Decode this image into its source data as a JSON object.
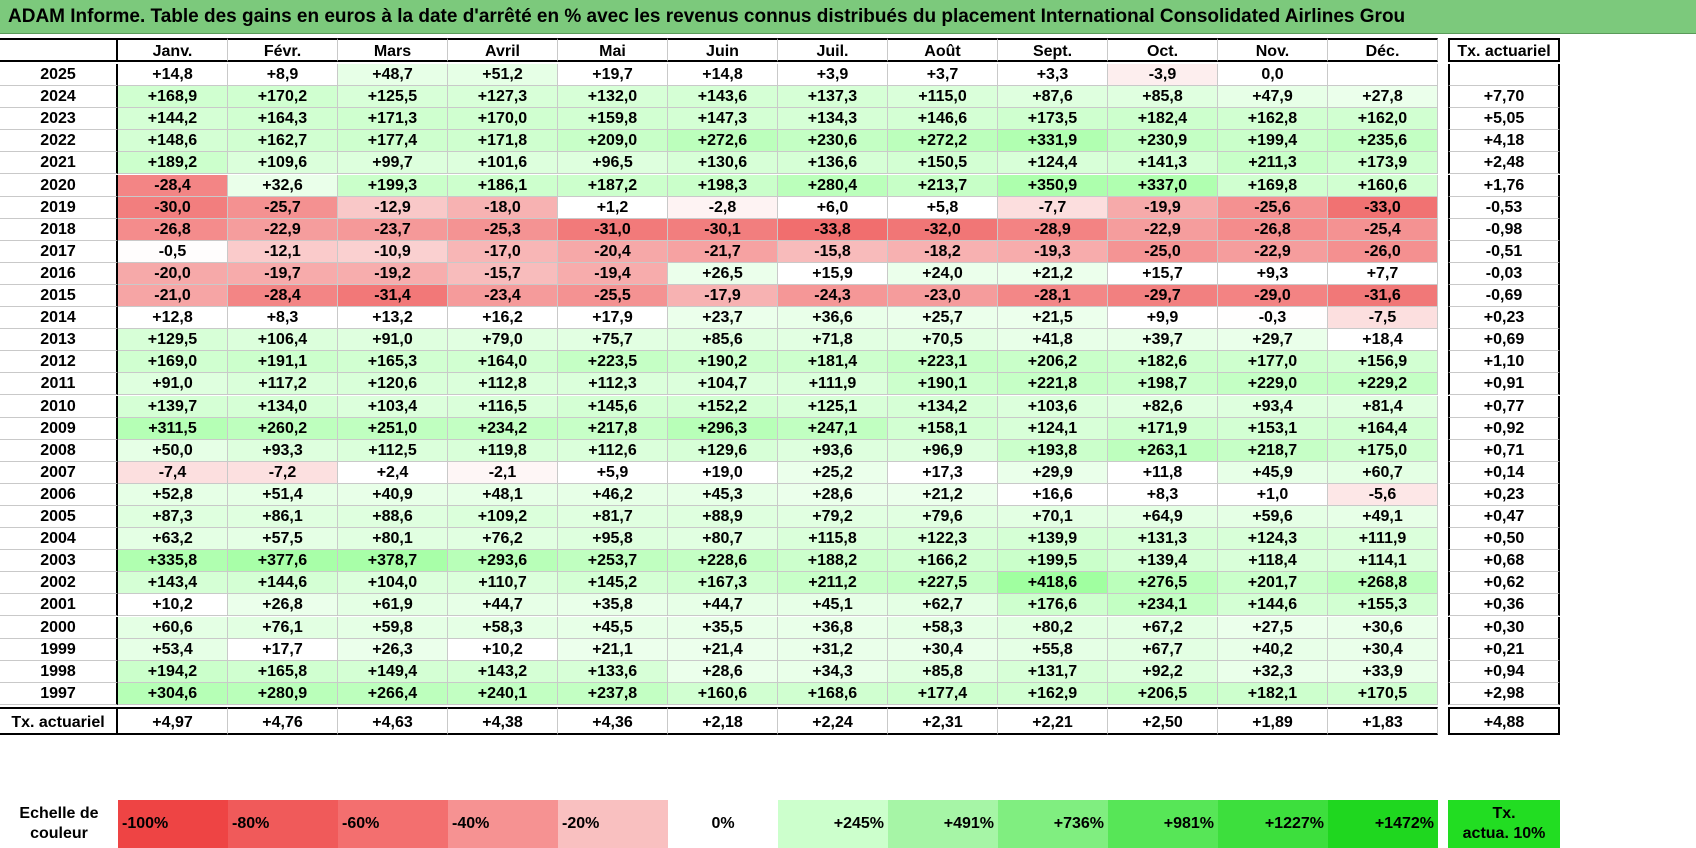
{
  "title": "ADAM Informe. Table des gains en euros à la date d'arrêté en % avec les revenus connus distribués du placement International Consolidated Airlines Grou",
  "months": [
    "Janv.",
    "Févr.",
    "Mars",
    "Avril",
    "Mai",
    "Juin",
    "Juil.",
    "Août",
    "Sept.",
    "Oct.",
    "Nov.",
    "Déc."
  ],
  "tx_header": "Tx. actuariel",
  "rows": [
    {
      "year": "2025",
      "values": [
        "+14,8",
        "+8,9",
        "+48,7",
        "+51,2",
        "+19,7",
        "+14,8",
        "+3,9",
        "+3,7",
        "+3,3",
        "-3,9",
        "0,0",
        ""
      ],
      "tx": ""
    },
    {
      "year": "2024",
      "values": [
        "+168,9",
        "+170,2",
        "+125,5",
        "+127,3",
        "+132,0",
        "+143,6",
        "+137,3",
        "+115,0",
        "+87,6",
        "+85,8",
        "+47,9",
        "+27,8"
      ],
      "tx": "+7,70"
    },
    {
      "year": "2023",
      "values": [
        "+144,2",
        "+164,3",
        "+171,3",
        "+170,0",
        "+159,8",
        "+147,3",
        "+134,3",
        "+146,6",
        "+173,5",
        "+182,4",
        "+162,8",
        "+162,0"
      ],
      "tx": "+5,05"
    },
    {
      "year": "2022",
      "values": [
        "+148,6",
        "+162,7",
        "+177,4",
        "+171,8",
        "+209,0",
        "+272,6",
        "+230,6",
        "+272,2",
        "+331,9",
        "+230,9",
        "+199,4",
        "+235,6"
      ],
      "tx": "+4,18"
    },
    {
      "year": "2021",
      "values": [
        "+189,2",
        "+109,6",
        "+99,7",
        "+101,6",
        "+96,5",
        "+130,6",
        "+136,6",
        "+150,5",
        "+124,4",
        "+141,3",
        "+211,3",
        "+173,9"
      ],
      "tx": "+2,48"
    },
    {
      "year": "2020",
      "values": [
        "-28,4",
        "+32,6",
        "+199,3",
        "+186,1",
        "+187,2",
        "+198,3",
        "+280,4",
        "+213,7",
        "+350,9",
        "+337,0",
        "+169,8",
        "+160,6"
      ],
      "tx": "+1,76"
    },
    {
      "year": "2019",
      "values": [
        "-30,0",
        "-25,7",
        "-12,9",
        "-18,0",
        "+1,2",
        "-2,8",
        "+6,0",
        "+5,8",
        "-7,7",
        "-19,9",
        "-25,6",
        "-33,0"
      ],
      "tx": "-0,53"
    },
    {
      "year": "2018",
      "values": [
        "-26,8",
        "-22,9",
        "-23,7",
        "-25,3",
        "-31,0",
        "-30,1",
        "-33,8",
        "-32,0",
        "-28,9",
        "-22,9",
        "-26,8",
        "-25,4"
      ],
      "tx": "-0,98"
    },
    {
      "year": "2017",
      "values": [
        "-0,5",
        "-12,1",
        "-10,9",
        "-17,0",
        "-20,4",
        "-21,7",
        "-15,8",
        "-18,2",
        "-19,3",
        "-25,0",
        "-22,9",
        "-26,0"
      ],
      "tx": "-0,51"
    },
    {
      "year": "2016",
      "values": [
        "-20,0",
        "-19,7",
        "-19,2",
        "-15,7",
        "-19,4",
        "+26,5",
        "+15,9",
        "+24,0",
        "+21,2",
        "+15,7",
        "+9,3",
        "+7,7"
      ],
      "tx": "-0,03"
    },
    {
      "year": "2015",
      "values": [
        "-21,0",
        "-28,4",
        "-31,4",
        "-23,4",
        "-25,5",
        "-17,9",
        "-24,3",
        "-23,0",
        "-28,1",
        "-29,7",
        "-29,0",
        "-31,6"
      ],
      "tx": "-0,69"
    },
    {
      "year": "2014",
      "values": [
        "+12,8",
        "+8,3",
        "+13,2",
        "+16,2",
        "+17,9",
        "+23,7",
        "+36,6",
        "+25,7",
        "+21,5",
        "+9,9",
        "-0,3",
        "-7,5"
      ],
      "tx": "+0,23"
    },
    {
      "year": "2013",
      "values": [
        "+129,5",
        "+106,4",
        "+91,0",
        "+79,0",
        "+75,7",
        "+85,6",
        "+71,8",
        "+70,5",
        "+41,8",
        "+39,7",
        "+29,7",
        "+18,4"
      ],
      "tx": "+0,69"
    },
    {
      "year": "2012",
      "values": [
        "+169,0",
        "+191,1",
        "+165,3",
        "+164,0",
        "+223,5",
        "+190,2",
        "+181,4",
        "+223,1",
        "+206,2",
        "+182,6",
        "+177,0",
        "+156,9"
      ],
      "tx": "+1,10"
    },
    {
      "year": "2011",
      "values": [
        "+91,0",
        "+117,2",
        "+120,6",
        "+112,8",
        "+112,3",
        "+104,7",
        "+111,9",
        "+190,1",
        "+221,8",
        "+198,7",
        "+229,0",
        "+229,2"
      ],
      "tx": "+0,91"
    },
    {
      "year": "2010",
      "values": [
        "+139,7",
        "+134,0",
        "+103,4",
        "+116,5",
        "+145,6",
        "+152,2",
        "+125,1",
        "+134,2",
        "+103,6",
        "+82,6",
        "+93,4",
        "+81,4"
      ],
      "tx": "+0,77"
    },
    {
      "year": "2009",
      "values": [
        "+311,5",
        "+260,2",
        "+251,0",
        "+234,2",
        "+217,8",
        "+296,3",
        "+247,1",
        "+158,1",
        "+124,1",
        "+171,9",
        "+153,1",
        "+164,4"
      ],
      "tx": "+0,92"
    },
    {
      "year": "2008",
      "values": [
        "+50,0",
        "+93,3",
        "+112,5",
        "+119,8",
        "+112,6",
        "+129,6",
        "+93,6",
        "+96,9",
        "+193,8",
        "+263,1",
        "+218,7",
        "+175,0"
      ],
      "tx": "+0,71"
    },
    {
      "year": "2007",
      "values": [
        "-7,4",
        "-7,2",
        "+2,4",
        "-2,1",
        "+5,9",
        "+19,0",
        "+25,2",
        "+17,3",
        "+29,9",
        "+11,8",
        "+45,9",
        "+60,7"
      ],
      "tx": "+0,14"
    },
    {
      "year": "2006",
      "values": [
        "+52,8",
        "+51,4",
        "+40,9",
        "+48,1",
        "+46,2",
        "+45,3",
        "+28,6",
        "+21,2",
        "+16,6",
        "+8,3",
        "+1,0",
        "-5,6"
      ],
      "tx": "+0,23"
    },
    {
      "year": "2005",
      "values": [
        "+87,3",
        "+86,1",
        "+88,6",
        "+109,2",
        "+81,7",
        "+88,9",
        "+79,2",
        "+79,6",
        "+70,1",
        "+64,9",
        "+59,6",
        "+49,1"
      ],
      "tx": "+0,47"
    },
    {
      "year": "2004",
      "values": [
        "+63,2",
        "+57,5",
        "+80,1",
        "+76,2",
        "+95,8",
        "+80,7",
        "+115,8",
        "+122,3",
        "+139,9",
        "+131,3",
        "+124,3",
        "+111,9"
      ],
      "tx": "+0,50"
    },
    {
      "year": "2003",
      "values": [
        "+335,8",
        "+377,6",
        "+378,7",
        "+293,6",
        "+253,7",
        "+228,6",
        "+188,2",
        "+166,2",
        "+199,5",
        "+139,4",
        "+118,4",
        "+114,1"
      ],
      "tx": "+0,68"
    },
    {
      "year": "2002",
      "values": [
        "+143,4",
        "+144,6",
        "+104,0",
        "+110,7",
        "+145,2",
        "+167,3",
        "+211,2",
        "+227,5",
        "+418,6",
        "+276,5",
        "+201,7",
        "+268,8"
      ],
      "tx": "+0,62"
    },
    {
      "year": "2001",
      "values": [
        "+10,2",
        "+26,8",
        "+61,9",
        "+44,7",
        "+35,8",
        "+44,7",
        "+45,1",
        "+62,7",
        "+176,6",
        "+234,1",
        "+144,6",
        "+155,3"
      ],
      "tx": "+0,36"
    },
    {
      "year": "2000",
      "values": [
        "+60,6",
        "+76,1",
        "+59,8",
        "+58,3",
        "+45,5",
        "+35,5",
        "+36,8",
        "+58,3",
        "+80,2",
        "+67,2",
        "+27,5",
        "+30,6"
      ],
      "tx": "+0,30"
    },
    {
      "year": "1999",
      "values": [
        "+53,4",
        "+17,7",
        "+26,3",
        "+10,2",
        "+21,1",
        "+21,4",
        "+31,2",
        "+30,4",
        "+55,8",
        "+67,7",
        "+40,2",
        "+30,4"
      ],
      "tx": "+0,21"
    },
    {
      "year": "1998",
      "values": [
        "+194,2",
        "+165,8",
        "+149,4",
        "+143,2",
        "+133,6",
        "+28,6",
        "+34,3",
        "+85,8",
        "+131,7",
        "+92,2",
        "+32,3",
        "+33,9"
      ],
      "tx": "+0,94"
    },
    {
      "year": "1997",
      "values": [
        "+304,6",
        "+280,9",
        "+266,4",
        "+240,1",
        "+237,8",
        "+160,6",
        "+168,6",
        "+177,4",
        "+162,9",
        "+206,5",
        "+182,1",
        "+170,5"
      ],
      "tx": "+2,98"
    }
  ],
  "totals": {
    "label": "Tx. actuariel",
    "values": [
      "+4,97",
      "+4,76",
      "+4,63",
      "+4,38",
      "+4,36",
      "+2,18",
      "+2,24",
      "+2,31",
      "+2,21",
      "+2,50",
      "+1,89",
      "+1,83"
    ],
    "tx": "+4,88"
  },
  "scale": {
    "label_line1": "Echelle de",
    "label_line2": "couleur",
    "steps": [
      "-100%",
      "-80%",
      "-60%",
      "-40%",
      "-20%",
      "0%",
      "+245%",
      "+491%",
      "+736%",
      "+981%",
      "+1227%",
      "+1472%"
    ],
    "colors": [
      "#ee4444",
      "#f05a5a",
      "#f36f6f",
      "#f69292",
      "#f9c0c0",
      "#ffffff",
      "#ccffcc",
      "#a6f5a6",
      "#80ee80",
      "#57e657",
      "#3ddf3d",
      "#1fd71f"
    ],
    "tx_line1": "Tx.",
    "tx_line2": "actua. 10%",
    "tx_color": "#22dd22"
  },
  "colors": {
    "title_bg": "#7cc97c",
    "neg_strong": "#f16b6b",
    "pos_light": "#e6ffe6"
  }
}
